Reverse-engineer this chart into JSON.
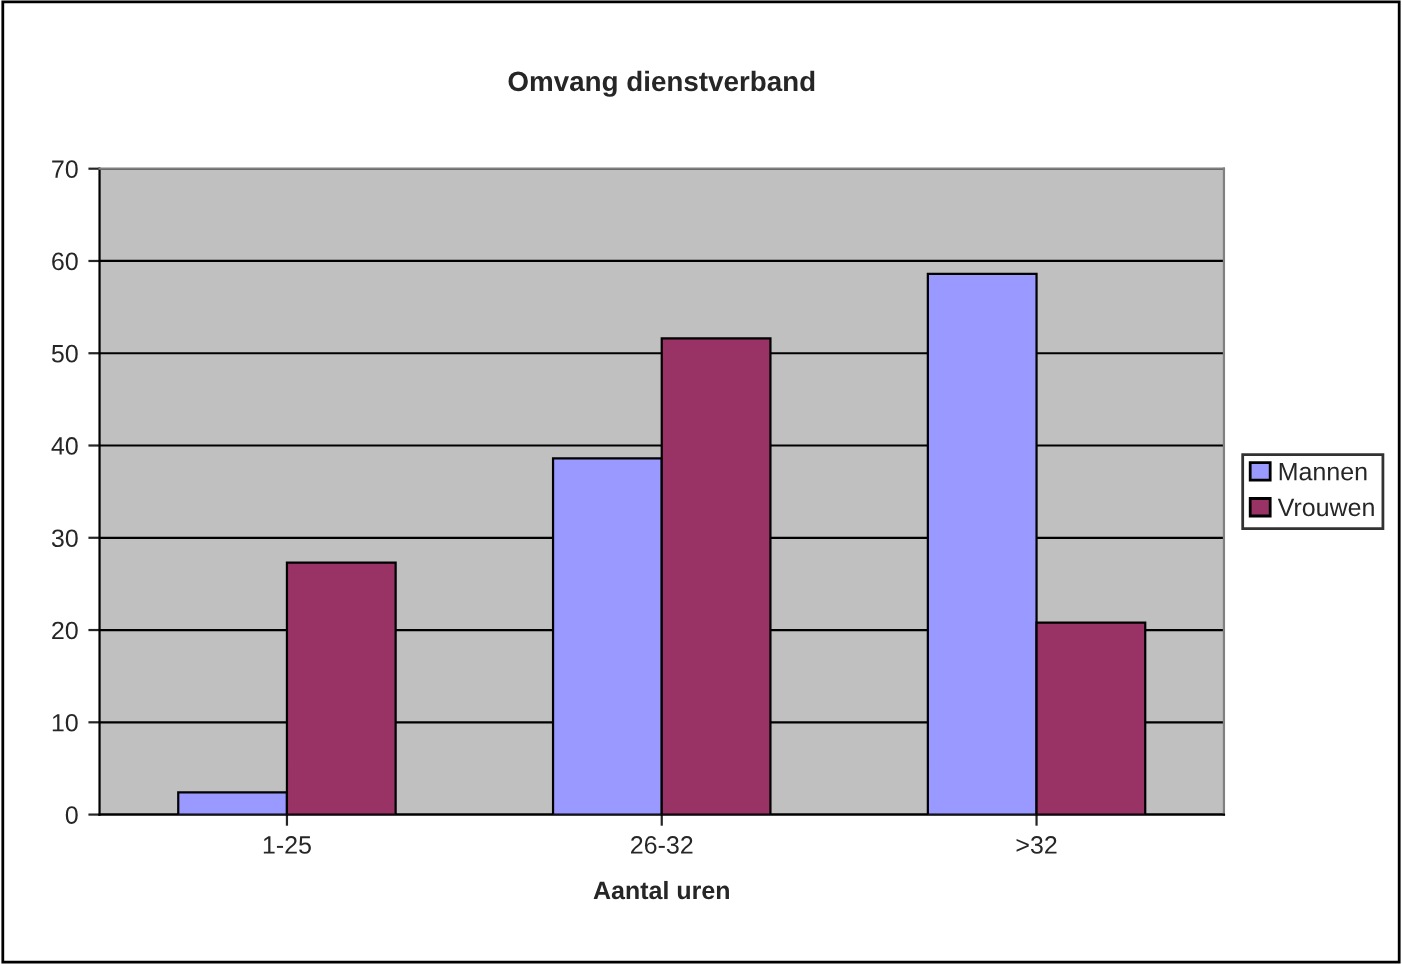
{
  "chart_data": {
    "type": "bar",
    "title": "Omvang dienstverband",
    "xlabel": "Aantal uren",
    "categories": [
      "1-25",
      "26-32",
      ">32"
    ],
    "series": [
      {
        "name": "Mannen",
        "color": "#9999ff",
        "values": [
          2.4,
          38.6,
          58.6
        ]
      },
      {
        "name": "Vrouwen",
        "color": "#993366",
        "values": [
          27.3,
          51.6,
          20.8
        ]
      }
    ],
    "ylim": [
      0,
      70
    ],
    "yticks": [
      0,
      10,
      20,
      30,
      40,
      50,
      60,
      70
    ],
    "grid": "y",
    "legend": "right"
  }
}
